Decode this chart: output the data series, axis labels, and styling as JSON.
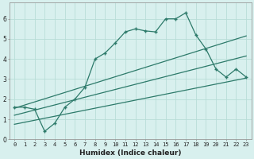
{
  "xlabel": "Humidex (Indice chaleur)",
  "bg_color": "#d8f0ee",
  "line_color": "#2d7a6a",
  "grid_color": "#b8ddd8",
  "xlim": [
    -0.5,
    23.5
  ],
  "ylim": [
    0,
    6.8
  ],
  "yticks": [
    0,
    1,
    2,
    3,
    4,
    5,
    6
  ],
  "xtick_labels": [
    "0",
    "1",
    "2",
    "3",
    "4",
    "5",
    "6",
    "7",
    "8",
    "9",
    "10",
    "11",
    "12",
    "13",
    "14",
    "15",
    "16",
    "17",
    "18",
    "19",
    "20",
    "21",
    "22",
    "23"
  ],
  "main_x": [
    0,
    1,
    2,
    3,
    4,
    5,
    6,
    7,
    8,
    9,
    10,
    11,
    12,
    13,
    14,
    15,
    16,
    17,
    18,
    19,
    20,
    21,
    22,
    23
  ],
  "main_y": [
    1.6,
    1.6,
    1.5,
    0.4,
    0.8,
    1.6,
    2.0,
    2.6,
    4.0,
    4.3,
    4.8,
    5.35,
    5.5,
    5.4,
    5.35,
    6.0,
    6.0,
    6.3,
    5.2,
    4.5,
    3.5,
    3.1,
    3.5,
    3.1
  ],
  "line1_x": [
    0,
    23
  ],
  "line1_y": [
    1.55,
    5.15
  ],
  "line2_x": [
    0,
    23
  ],
  "line2_y": [
    1.2,
    4.15
  ],
  "line3_x": [
    0,
    23
  ],
  "line3_y": [
    0.75,
    3.05
  ],
  "tick_fontsize": 5.0,
  "xlabel_fontsize": 6.5,
  "xlabel_fontweight": "bold"
}
